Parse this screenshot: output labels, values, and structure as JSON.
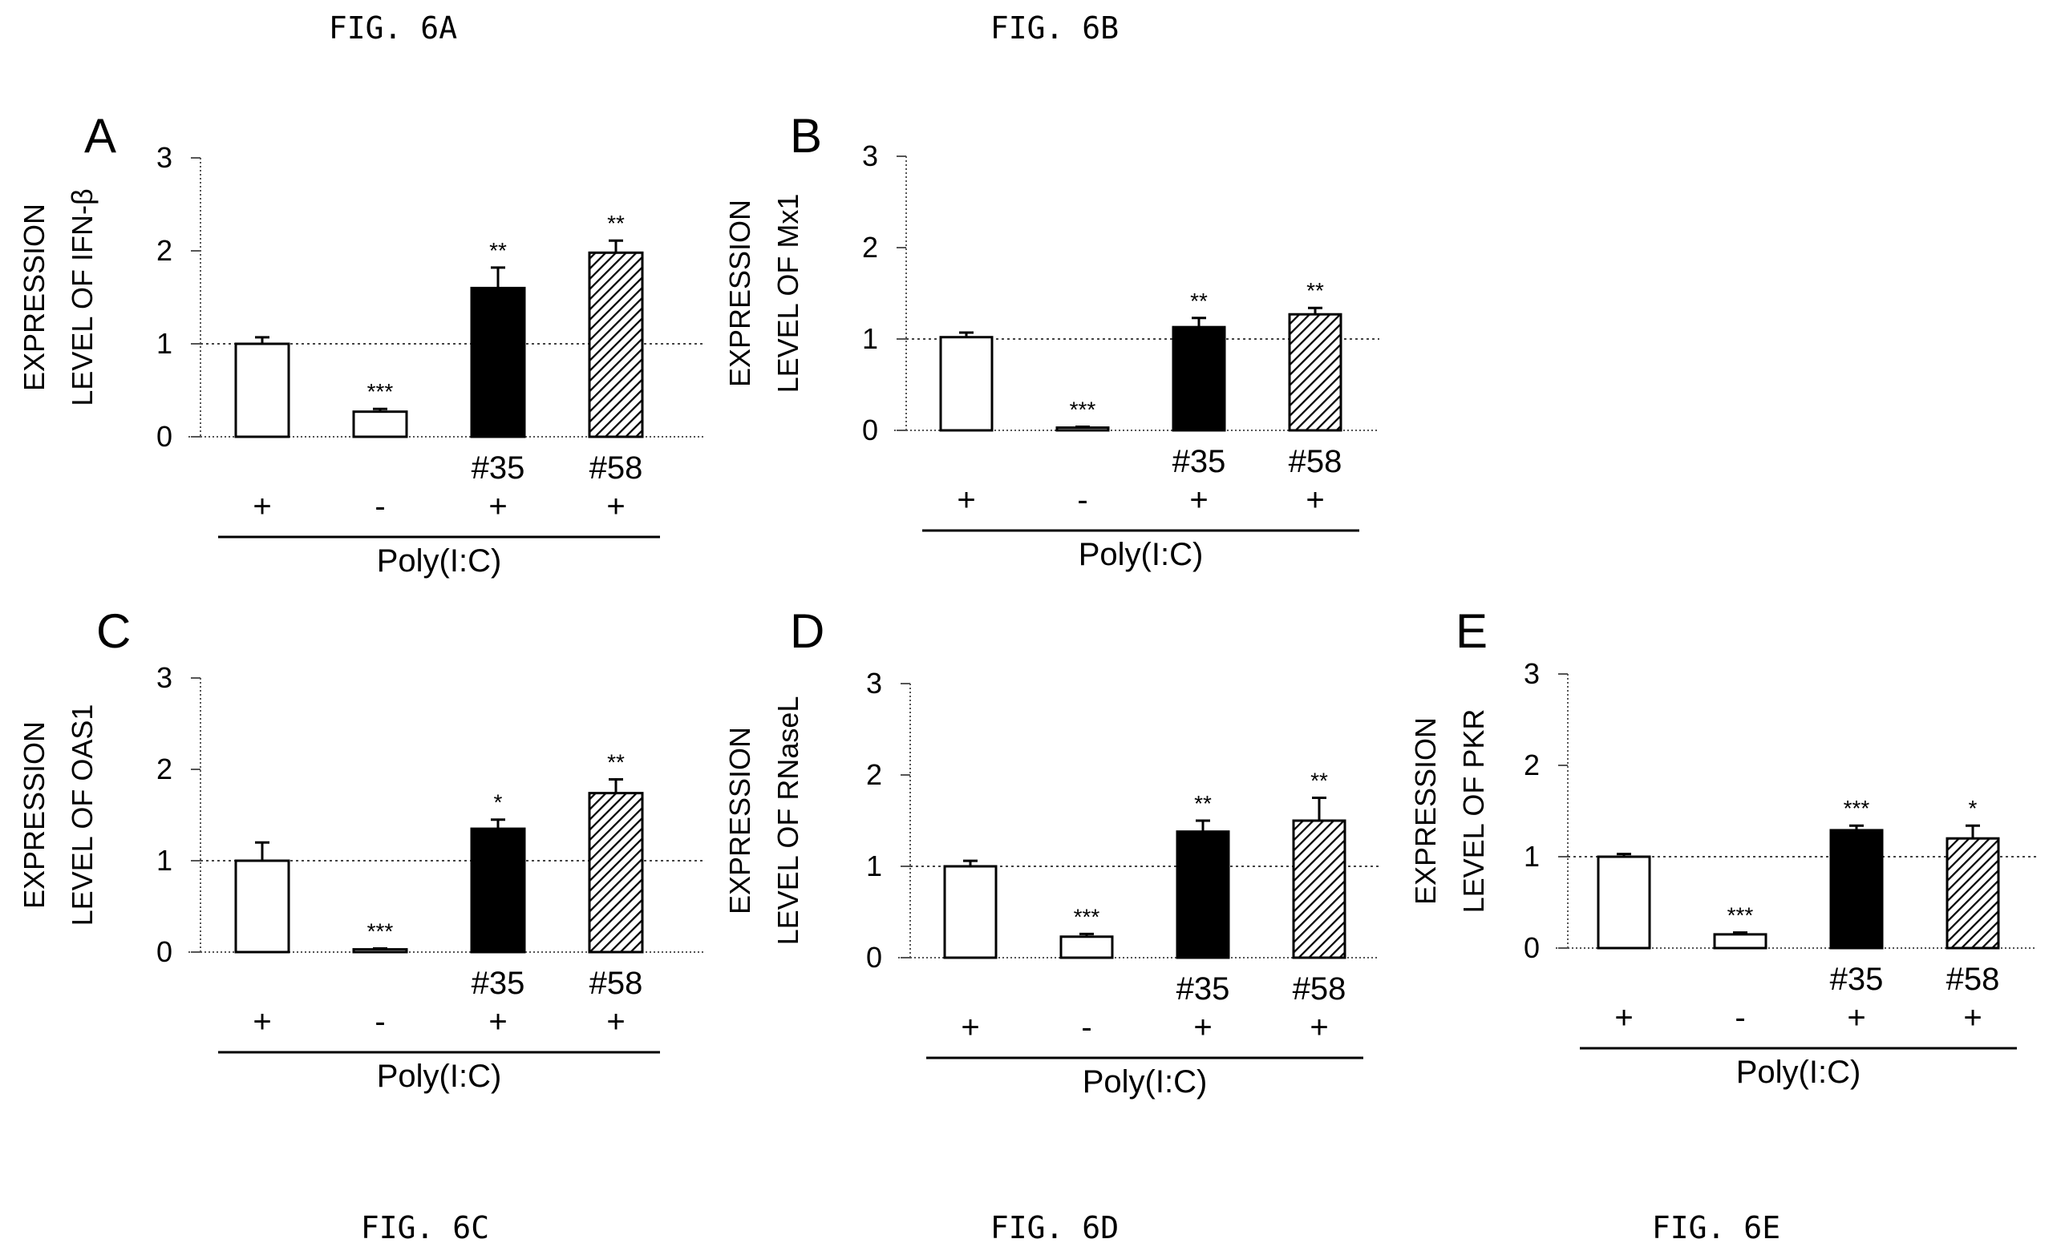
{
  "chart_data": [
    {
      "type": "bar",
      "panel": "A",
      "figure_caption": "FIG. 6A",
      "ylabel": [
        "EXPRESSION",
        "LEVEL OF IFN-β"
      ],
      "ylim": [
        0,
        3
      ],
      "yticks": [
        "0",
        "1",
        "2",
        "3"
      ],
      "reference_line": 1,
      "xlabel": "Poly(I:C)",
      "categories": [
        "",
        "",
        "#35",
        "#58"
      ],
      "polyic": [
        "+",
        "-",
        "+",
        "+"
      ],
      "values": [
        1.0,
        0.27,
        1.6,
        1.98
      ],
      "errors": [
        0.07,
        0.03,
        0.22,
        0.13
      ],
      "significance": [
        "",
        "***",
        "**",
        "**"
      ],
      "bar_fills": [
        "white",
        "white",
        "black",
        "hatched"
      ]
    },
    {
      "type": "bar",
      "panel": "B",
      "figure_caption": "FIG. 6B",
      "ylabel": [
        "EXPRESSION",
        "LEVEL OF Mx1"
      ],
      "ylim": [
        0,
        3
      ],
      "yticks": [
        "0",
        "1",
        "2",
        "3"
      ],
      "reference_line": 1,
      "xlabel": "Poly(I:C)",
      "categories": [
        "",
        "",
        "#35",
        "#58"
      ],
      "polyic": [
        "+",
        "-",
        "+",
        "+"
      ],
      "values": [
        1.02,
        0.03,
        1.13,
        1.27
      ],
      "errors": [
        0.05,
        0.01,
        0.1,
        0.07
      ],
      "significance": [
        "",
        "***",
        "**",
        "**"
      ],
      "bar_fills": [
        "white",
        "white",
        "black",
        "hatched"
      ]
    },
    {
      "type": "bar",
      "panel": "C",
      "figure_caption": "FIG. 6C",
      "ylabel": [
        "EXPRESSION",
        "LEVEL OF OAS1"
      ],
      "ylim": [
        0,
        3
      ],
      "yticks": [
        "0",
        "1",
        "2",
        "3"
      ],
      "reference_line": 1,
      "xlabel": "Poly(I:C)",
      "categories": [
        "",
        "",
        "#35",
        "#58"
      ],
      "polyic": [
        "+",
        "-",
        "+",
        "+"
      ],
      "values": [
        1.0,
        0.03,
        1.35,
        1.74
      ],
      "errors": [
        0.2,
        0.01,
        0.1,
        0.15
      ],
      "significance": [
        "",
        "***",
        "*",
        "**"
      ],
      "bar_fills": [
        "white",
        "white",
        "black",
        "hatched"
      ]
    },
    {
      "type": "bar",
      "panel": "D",
      "figure_caption": "FIG. 6D",
      "ylabel": [
        "EXPRESSION",
        "LEVEL OF RNaseL"
      ],
      "ylim": [
        0,
        3
      ],
      "yticks": [
        "0",
        "1",
        "2",
        "3"
      ],
      "reference_line": 1,
      "xlabel": "Poly(I:C)",
      "categories": [
        "",
        "",
        "#35",
        "#58"
      ],
      "polyic": [
        "+",
        "-",
        "+",
        "+"
      ],
      "values": [
        1.0,
        0.23,
        1.38,
        1.5
      ],
      "errors": [
        0.06,
        0.03,
        0.12,
        0.25
      ],
      "significance": [
        "",
        "***",
        "**",
        "**"
      ],
      "bar_fills": [
        "white",
        "white",
        "black",
        "hatched"
      ]
    },
    {
      "type": "bar",
      "panel": "E",
      "figure_caption": "FIG. 6E",
      "ylabel": [
        "EXPRESSION",
        "LEVEL OF PKR"
      ],
      "ylim": [
        0,
        3
      ],
      "yticks": [
        "0",
        "1",
        "2",
        "3"
      ],
      "reference_line": 1,
      "xlabel": "Poly(I:C)",
      "categories": [
        "",
        "",
        "#35",
        "#58"
      ],
      "polyic": [
        "+",
        "-",
        "+",
        "+"
      ],
      "values": [
        1.0,
        0.15,
        1.29,
        1.2
      ],
      "errors": [
        0.03,
        0.02,
        0.05,
        0.14
      ],
      "significance": [
        "",
        "***",
        "***",
        "*"
      ],
      "bar_fills": [
        "white",
        "white",
        "black",
        "hatched"
      ]
    }
  ]
}
